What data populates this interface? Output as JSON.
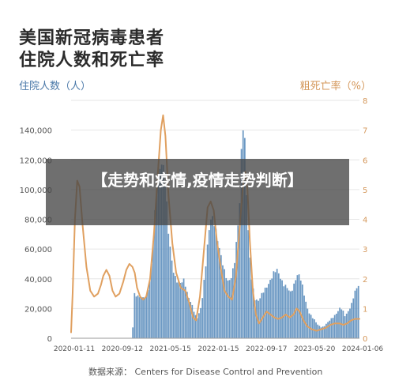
{
  "header": {
    "title_line1": "美国新冠病毒患者",
    "title_line2": "住院人数和死亡率"
  },
  "overlay": {
    "text": "【走势和疫情,疫情走势判断】"
  },
  "footer": {
    "source": "数据来源： Centers for Disease Control and Prevention"
  },
  "colors": {
    "bars": "#5b8dbd",
    "line": "#e0a060",
    "grid": "#e6e6e6",
    "left_axis_text": "#4a78a8",
    "right_axis_text": "#d4975a"
  },
  "chart_data": {
    "type": "bar",
    "ylabel": "住院人数（人）",
    "y2label": "粗死亡率（%）",
    "ylim": [
      0,
      160000
    ],
    "y2lim": [
      0,
      8
    ],
    "yticks": [
      "0",
      "20,000",
      "40,000",
      "60,000",
      "80,000",
      "100,000",
      "120,000",
      "140,000"
    ],
    "y2ticks": [
      "0",
      "1",
      "2",
      "3",
      "4",
      "5",
      "6",
      "7",
      "8"
    ],
    "xticks": [
      "2020-01-11",
      "2020-09-12",
      "2021-05-15",
      "2022-01-15",
      "2022-09-17",
      "2023-05-20",
      "2024-01-06"
    ],
    "grid": true,
    "bar_series": {
      "name": "住院人数（人）",
      "points": [
        [
          0.0,
          0
        ],
        [
          8.0,
          0
        ],
        [
          8.3,
          31000
        ],
        [
          8.8,
          28000
        ],
        [
          9.3,
          26000
        ],
        [
          9.8,
          28000
        ],
        [
          10.4,
          42000
        ],
        [
          10.9,
          78000
        ],
        [
          11.3,
          105000
        ],
        [
          11.7,
          120000
        ],
        [
          11.9,
          123000
        ],
        [
          12.3,
          105000
        ],
        [
          12.7,
          70000
        ],
        [
          13.2,
          50000
        ],
        [
          13.7,
          40000
        ],
        [
          14.3,
          36000
        ],
        [
          14.8,
          39000
        ],
        [
          15.1,
          32000
        ],
        [
          15.8,
          22000
        ],
        [
          16.2,
          15000
        ],
        [
          16.5,
          13500
        ],
        [
          17.0,
          22000
        ],
        [
          17.5,
          45000
        ],
        [
          18.0,
          70000
        ],
        [
          18.3,
          82000
        ],
        [
          18.7,
          80000
        ],
        [
          19.1,
          68000
        ],
        [
          19.5,
          55000
        ],
        [
          20.0,
          45000
        ],
        [
          20.5,
          39000
        ],
        [
          21.0,
          42000
        ],
        [
          21.4,
          52000
        ],
        [
          21.7,
          70000
        ],
        [
          22.0,
          92000
        ],
        [
          22.3,
          140000
        ],
        [
          22.5,
          150000
        ],
        [
          22.7,
          128000
        ],
        [
          22.9,
          95000
        ],
        [
          23.2,
          60000
        ],
        [
          23.6,
          38000
        ],
        [
          24.0,
          27000
        ],
        [
          24.5,
          25000
        ],
        [
          24.8,
          28000
        ],
        [
          25.3,
          33000
        ],
        [
          25.8,
          38000
        ],
        [
          26.2,
          41000
        ],
        [
          26.6,
          44000
        ],
        [
          26.9,
          45500
        ],
        [
          27.3,
          42000
        ],
        [
          27.7,
          37000
        ],
        [
          28.1,
          34000
        ],
        [
          28.6,
          30000
        ],
        [
          29.0,
          35000
        ],
        [
          29.4,
          43000
        ],
        [
          29.8,
          42000
        ],
        [
          30.2,
          34000
        ],
        [
          30.6,
          25000
        ],
        [
          31.0,
          18000
        ],
        [
          31.6,
          13000
        ],
        [
          32.2,
          9000
        ],
        [
          32.7,
          7500
        ],
        [
          33.1,
          8500
        ],
        [
          33.6,
          11000
        ],
        [
          34.1,
          14000
        ],
        [
          34.6,
          17000
        ],
        [
          35.1,
          20000
        ],
        [
          35.4,
          19000
        ],
        [
          35.7,
          15000
        ],
        [
          36.1,
          18000
        ],
        [
          36.6,
          23000
        ],
        [
          37.0,
          30000
        ],
        [
          37.6,
          37000
        ]
      ]
    },
    "line_series": {
      "name": "粗死亡率（%）",
      "points": [
        [
          0.0,
          0.2
        ],
        [
          0.2,
          1.5
        ],
        [
          0.5,
          4.0
        ],
        [
          0.8,
          5.3
        ],
        [
          1.1,
          5.1
        ],
        [
          1.5,
          3.8
        ],
        [
          2.0,
          2.4
        ],
        [
          2.5,
          1.6
        ],
        [
          3.0,
          1.4
        ],
        [
          3.5,
          1.5
        ],
        [
          3.9,
          1.8
        ],
        [
          4.2,
          2.1
        ],
        [
          4.6,
          2.3
        ],
        [
          5.0,
          2.1
        ],
        [
          5.4,
          1.6
        ],
        [
          5.8,
          1.4
        ],
        [
          6.3,
          1.5
        ],
        [
          6.8,
          1.9
        ],
        [
          7.2,
          2.3
        ],
        [
          7.6,
          2.5
        ],
        [
          8.0,
          2.4
        ],
        [
          8.3,
          2.2
        ],
        [
          8.6,
          1.7
        ],
        [
          9.0,
          1.4
        ],
        [
          9.4,
          1.3
        ],
        [
          9.8,
          1.4
        ],
        [
          10.3,
          2.0
        ],
        [
          10.8,
          3.5
        ],
        [
          11.3,
          5.5
        ],
        [
          11.7,
          7.0
        ],
        [
          12.0,
          7.5
        ],
        [
          12.3,
          6.8
        ],
        [
          12.7,
          4.8
        ],
        [
          13.2,
          3.2
        ],
        [
          13.7,
          2.2
        ],
        [
          14.3,
          1.7
        ],
        [
          14.9,
          1.6
        ],
        [
          15.4,
          1.2
        ],
        [
          15.9,
          0.7
        ],
        [
          16.3,
          0.6
        ],
        [
          16.8,
          1.4
        ],
        [
          17.3,
          2.9
        ],
        [
          17.8,
          4.4
        ],
        [
          18.2,
          4.6
        ],
        [
          18.6,
          4.3
        ],
        [
          19.0,
          3.3
        ],
        [
          19.5,
          2.4
        ],
        [
          20.0,
          1.6
        ],
        [
          20.5,
          1.4
        ],
        [
          21.0,
          1.3
        ],
        [
          21.5,
          2.1
        ],
        [
          22.0,
          3.8
        ],
        [
          22.4,
          5.1
        ],
        [
          22.7,
          5.6
        ],
        [
          23.0,
          5.0
        ],
        [
          23.3,
          3.3
        ],
        [
          23.7,
          1.6
        ],
        [
          24.1,
          0.8
        ],
        [
          24.5,
          0.5
        ],
        [
          25.0,
          0.7
        ],
        [
          25.5,
          0.9
        ],
        [
          26.0,
          0.8
        ],
        [
          26.5,
          0.7
        ],
        [
          27.0,
          0.65
        ],
        [
          27.5,
          0.7
        ],
        [
          28.0,
          0.8
        ],
        [
          28.5,
          0.7
        ],
        [
          29.0,
          0.8
        ],
        [
          29.4,
          1.0
        ],
        [
          29.8,
          0.9
        ],
        [
          30.3,
          0.6
        ],
        [
          30.8,
          0.4
        ],
        [
          31.4,
          0.3
        ],
        [
          32.0,
          0.25
        ],
        [
          32.6,
          0.3
        ],
        [
          33.2,
          0.35
        ],
        [
          33.8,
          0.45
        ],
        [
          34.4,
          0.5
        ],
        [
          35.0,
          0.5
        ],
        [
          35.5,
          0.45
        ],
        [
          36.0,
          0.5
        ],
        [
          36.5,
          0.6
        ],
        [
          37.0,
          0.65
        ],
        [
          37.6,
          0.65
        ]
      ]
    }
  }
}
